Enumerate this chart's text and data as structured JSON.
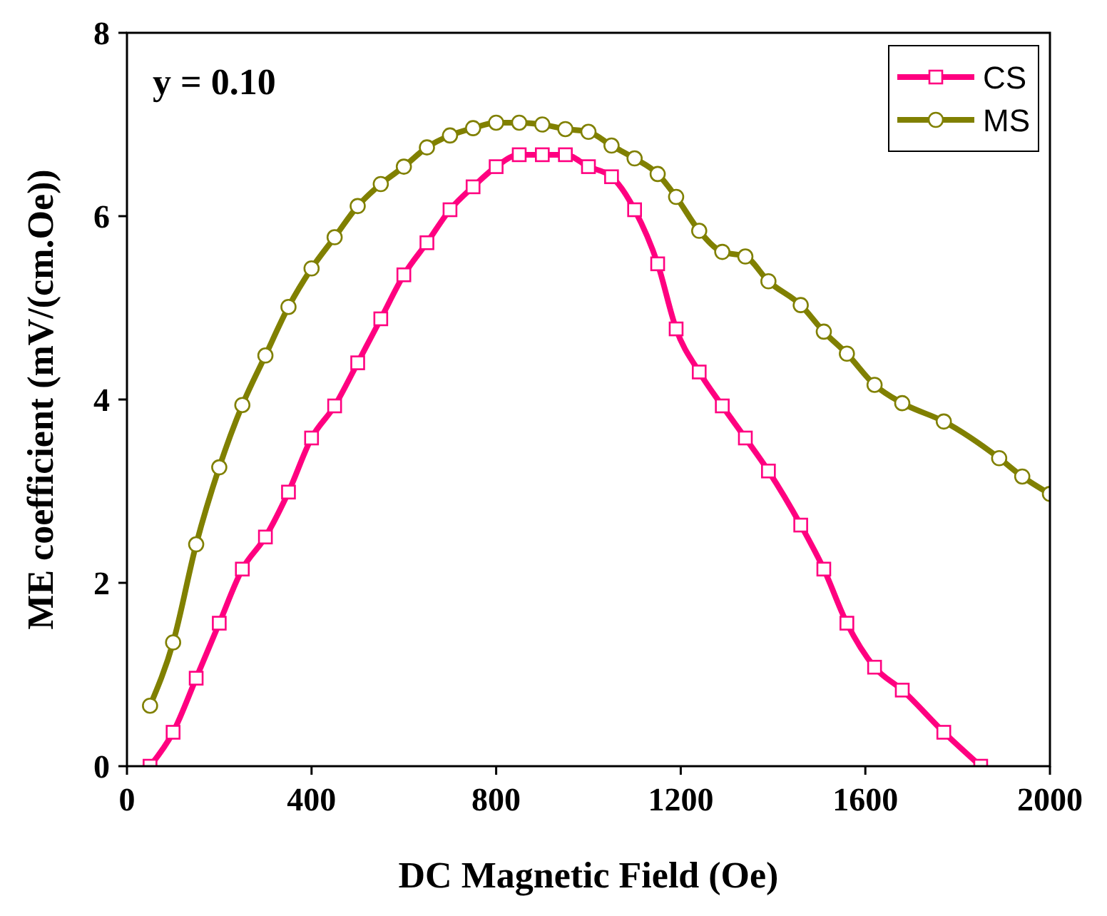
{
  "chart_data": {
    "type": "line",
    "xlabel": "DC Magnetic Field (Oe)",
    "ylabel": "ME coefficient (mV/(cm.Oe))",
    "annotations": [
      "y = 0.10"
    ],
    "xlim": [
      0,
      2000
    ],
    "xticks": [
      0,
      400,
      800,
      1200,
      1600,
      2000
    ],
    "ylim": [
      0,
      8
    ],
    "yticks": [
      0,
      2,
      4,
      6,
      8
    ],
    "legend": "top right",
    "grid": false,
    "series": [
      {
        "name": "CS",
        "color": "#ff0080",
        "marker": "square",
        "x": [
          50,
          100,
          150,
          200,
          250,
          300,
          350,
          400,
          450,
          500,
          550,
          600,
          650,
          700,
          750,
          800,
          850,
          900,
          950,
          1000,
          1050,
          1100,
          1150,
          1190,
          1240,
          1290,
          1340,
          1390,
          1460,
          1510,
          1560,
          1620,
          1680,
          1770,
          1850
        ],
        "values": [
          0,
          0.37,
          0.96,
          1.56,
          2.15,
          2.5,
          2.99,
          3.58,
          3.93,
          4.4,
          4.88,
          5.36,
          5.71,
          6.07,
          6.32,
          6.54,
          6.67,
          6.67,
          6.67,
          6.54,
          6.43,
          6.07,
          5.48,
          4.77,
          4.3,
          3.93,
          3.58,
          3.22,
          2.63,
          2.15,
          1.56,
          1.08,
          0.83,
          0.37,
          0
        ]
      },
      {
        "name": "MS",
        "color": "#808000",
        "marker": "circle",
        "x": [
          50,
          100,
          150,
          200,
          250,
          300,
          350,
          400,
          450,
          500,
          550,
          600,
          650,
          700,
          750,
          800,
          850,
          900,
          950,
          1000,
          1050,
          1100,
          1150,
          1190,
          1240,
          1290,
          1340,
          1390,
          1460,
          1510,
          1560,
          1620,
          1680,
          1770,
          1890,
          1940,
          2000
        ],
        "values": [
          0.66,
          1.35,
          2.42,
          3.26,
          3.94,
          4.48,
          5.01,
          5.43,
          5.77,
          6.11,
          6.35,
          6.54,
          6.75,
          6.88,
          6.96,
          7.02,
          7.02,
          7.0,
          6.95,
          6.92,
          6.77,
          6.63,
          6.46,
          6.21,
          5.84,
          5.61,
          5.56,
          5.29,
          5.03,
          4.74,
          4.5,
          4.16,
          3.96,
          3.76,
          3.36,
          3.16,
          2.97
        ]
      }
    ]
  }
}
